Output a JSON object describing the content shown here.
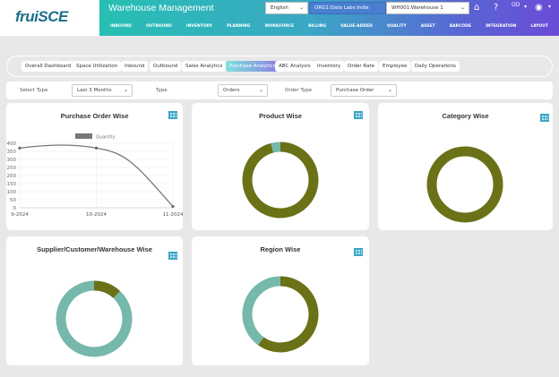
{
  "brand": {
    "logo": "fruiSCE"
  },
  "header": {
    "title": "Warehouse Management",
    "language": "English",
    "org": "ORG1:Data Labs India",
    "warehouse": "WH001:Warehouse 1",
    "user_initials": "OD",
    "nav": [
      "INBOUND",
      "OUTBOUND",
      "INVENTORY",
      "PLANNING",
      "WORKFORCE",
      "BILLING",
      "VALUE-ADDED",
      "QUALITY",
      "ASSET",
      "BARCODE",
      "INTEGRATION",
      "LAYOUT"
    ]
  },
  "tabs": [
    {
      "label": "Overall Dashboard"
    },
    {
      "label": "Space Utilization"
    },
    {
      "label": "Inbound"
    },
    {
      "label": "Outbound"
    },
    {
      "label": "Sales Analytics"
    },
    {
      "label": "Purchase Analytics",
      "active": true
    },
    {
      "label": "ABC Analysis"
    },
    {
      "label": "Inventory"
    },
    {
      "label": "Order Rate"
    },
    {
      "label": "Employee"
    },
    {
      "label": "Daily Operations"
    }
  ],
  "filters": {
    "select_type_label": "Select Type",
    "select_type_value": "Last 3 Months",
    "type_label": "Type",
    "type_value": "Orders",
    "order_type_label": "Order Type",
    "order_type_value": "Purchase Order"
  },
  "colors": {
    "olive": "#6b7116",
    "teal": "#76b8ab",
    "line": "#777777"
  },
  "cards": {
    "purchase": "Purchase Order Wise",
    "product": "Product Wise",
    "category": "Category Wise",
    "supplier": "Supplier/Customer/Warehouse Wise",
    "region": "Region Wise"
  },
  "chart_data": [
    {
      "type": "line",
      "title": "Purchase Order Wise",
      "legend": "Quantity",
      "categories": [
        "9-2024",
        "10-2024",
        "11-2024"
      ],
      "values": [
        370,
        370,
        8
      ],
      "ylim": [
        0,
        400
      ],
      "yticks": [
        0,
        50,
        100,
        150,
        200,
        250,
        300,
        350,
        400
      ]
    },
    {
      "type": "pie",
      "title": "Product Wise",
      "values": [
        0.96,
        0.04
      ]
    },
    {
      "type": "pie",
      "title": "Category Wise",
      "values": [
        1.0
      ]
    },
    {
      "type": "pie",
      "title": "Supplier/Customer/Warehouse Wise",
      "values": [
        0.12,
        0.88
      ]
    },
    {
      "type": "pie",
      "title": "Region Wise",
      "values": [
        0.6,
        0.4
      ]
    }
  ]
}
